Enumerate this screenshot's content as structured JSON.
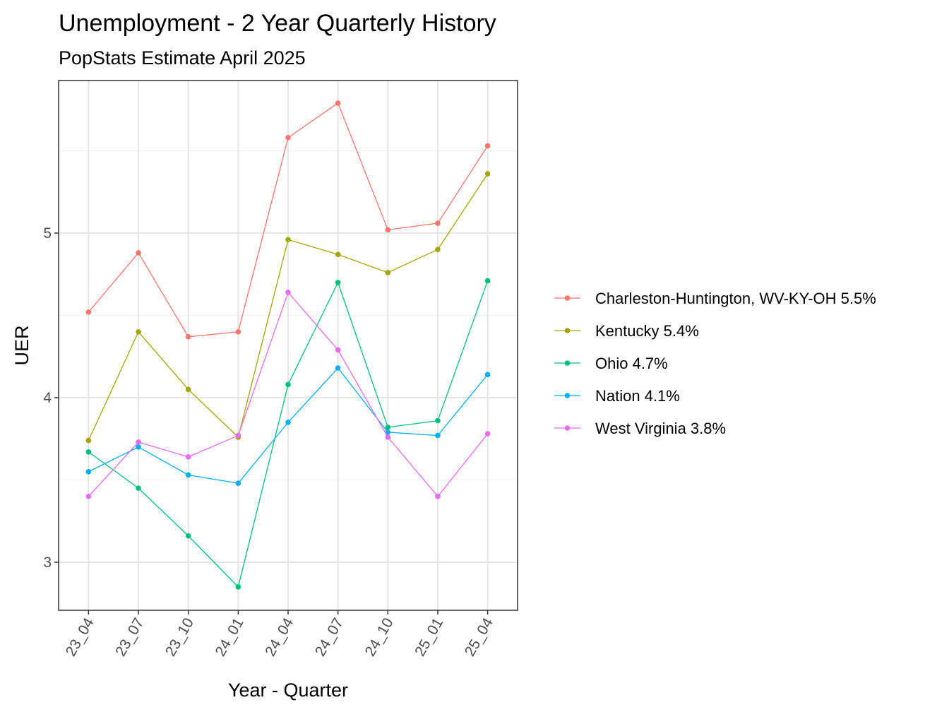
{
  "chart_data": {
    "type": "line",
    "title": "Unemployment - 2 Year Quarterly History",
    "subtitle": "PopStats Estimate April 2025",
    "x_label": "Year - Quarter",
    "y_label": "UER",
    "categories": [
      "23_04",
      "23_07",
      "23_10",
      "24_01",
      "24_04",
      "24_07",
      "24_10",
      "25_01",
      "25_04"
    ],
    "series": [
      {
        "name": "Charleston-Huntington, WV-KY-OH 5.5%",
        "color": "#F8766D",
        "values": [
          4.52,
          4.88,
          4.37,
          4.4,
          5.58,
          5.79,
          5.02,
          5.06,
          5.53
        ]
      },
      {
        "name": "Kentucky 5.4%",
        "color": "#A3A500",
        "values": [
          3.74,
          4.4,
          4.05,
          3.76,
          4.96,
          4.87,
          4.76,
          4.9,
          5.36
        ]
      },
      {
        "name": "Ohio 4.7%",
        "color": "#00BF7D",
        "values": [
          3.67,
          3.45,
          3.16,
          2.85,
          4.08,
          4.7,
          3.82,
          3.86,
          4.71
        ]
      },
      {
        "name": "Nation 4.1%",
        "color": "#00B0F6",
        "values": [
          3.55,
          3.7,
          3.53,
          3.48,
          3.85,
          4.18,
          3.79,
          3.77,
          4.14
        ]
      },
      {
        "name": "West Virginia 3.8%",
        "color": "#E76BF3",
        "values": [
          3.4,
          3.73,
          3.64,
          3.77,
          4.64,
          4.29,
          3.76,
          3.4,
          3.78
        ]
      }
    ],
    "ylim": [
      2.708,
      5.927
    ],
    "yticks": [
      3,
      4,
      5
    ],
    "y_minor_ticks": [
      3.5,
      4.5,
      5.5
    ],
    "grid": true,
    "legend": "right"
  }
}
